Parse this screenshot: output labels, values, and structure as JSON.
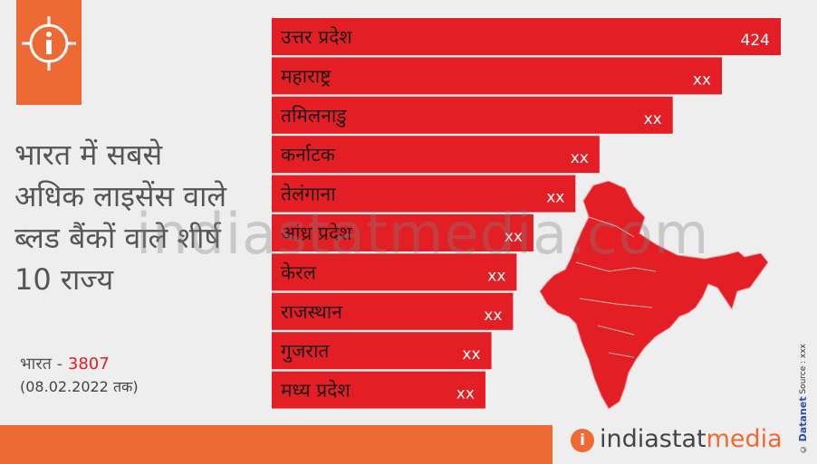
{
  "title": "भारत में सबसे अधिक लाइसेंस वाले ब्लड बैंकों वाले शीर्ष 10 राज्य",
  "india_total": {
    "label": "भारत -",
    "value": "3807"
  },
  "as_of": "(08.02.2022 तक)",
  "watermark": "indiastatmedia.com",
  "brand": {
    "prefix": "indiastat",
    "suffix": "media",
    "icon_letter": "i"
  },
  "side_credit": {
    "brand": "Datanet",
    "source": "Source : xxx",
    "copyright": "©"
  },
  "colors": {
    "bar": "#e31e24",
    "accent": "#ee6a35",
    "map": "#e31e24"
  },
  "icons": {
    "info": "info-icon",
    "map": "india-map-icon"
  },
  "chart_data": {
    "type": "bar",
    "orientation": "horizontal",
    "categories": [
      "उत्तर प्रदेश",
      "महाराष्ट्र",
      "तमिलनाडु",
      "कर्नाटक",
      "तेलंगाना",
      "आंध्र प्रदेश",
      "केरल",
      "राजस्थान",
      "गुजरात",
      "मध्य प्रदेश"
    ],
    "values": [
      424,
      375,
      334,
      273,
      253,
      218,
      204,
      201,
      183,
      178
    ],
    "value_labels": [
      "424",
      "xx",
      "xx",
      "xx",
      "xx",
      "xx",
      "xx",
      "xx",
      "xx",
      "xx"
    ],
    "xlim": [
      0,
      424
    ]
  }
}
